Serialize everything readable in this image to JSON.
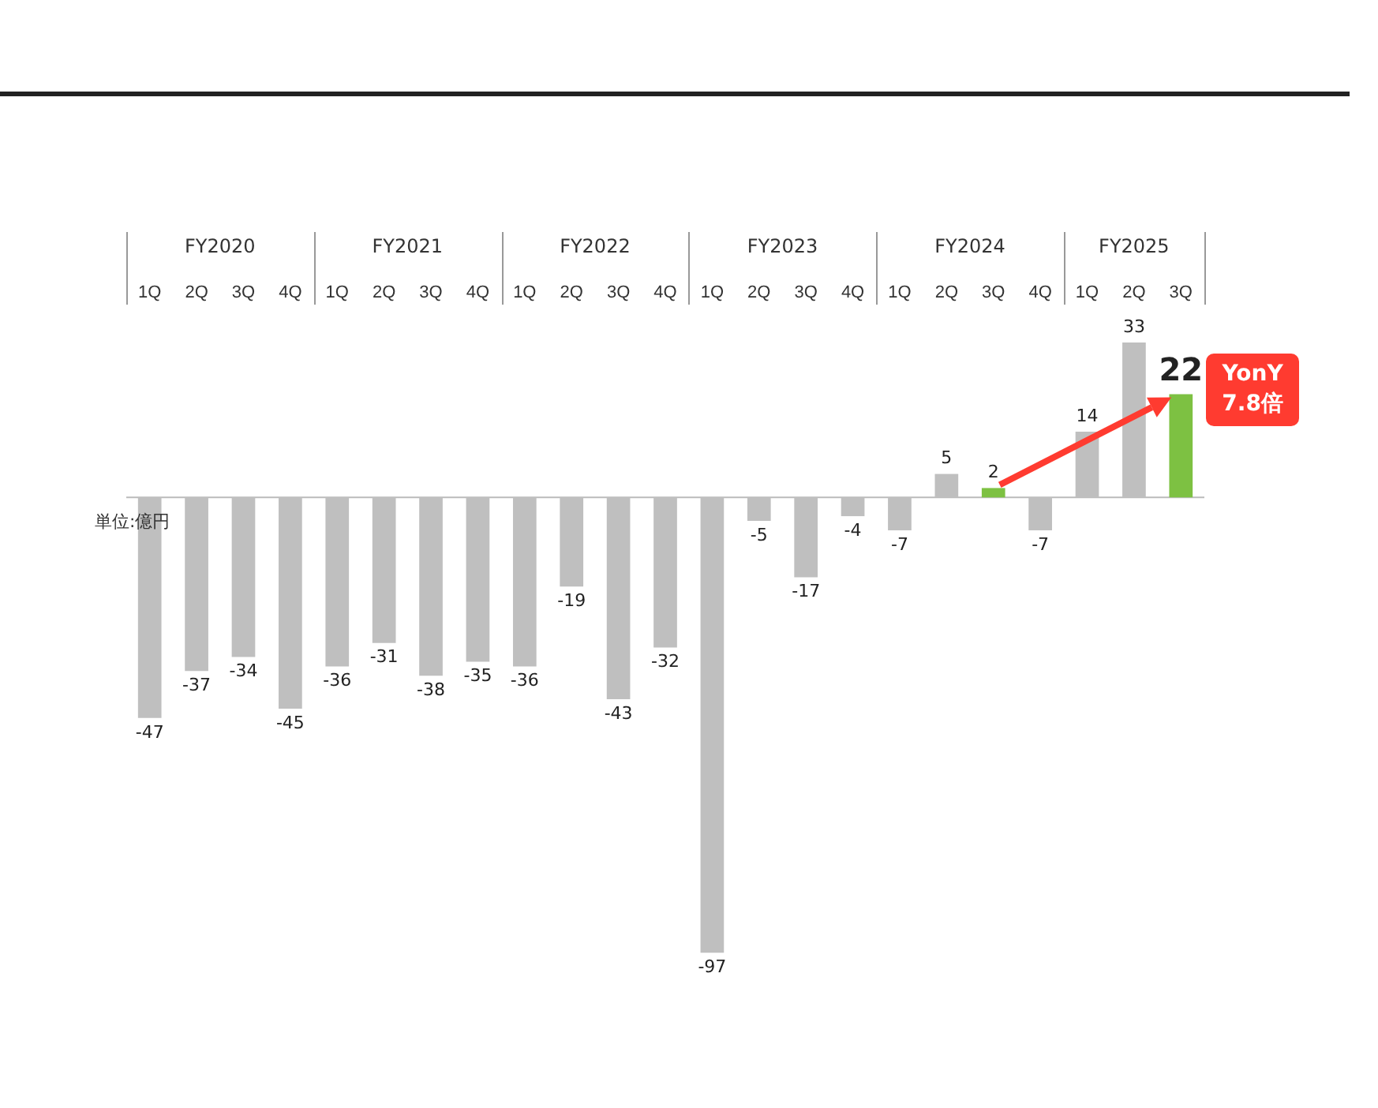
{
  "chart_data": {
    "type": "bar",
    "categories": [
      "1Q",
      "2Q",
      "3Q",
      "4Q",
      "1Q",
      "2Q",
      "3Q",
      "4Q",
      "1Q",
      "2Q",
      "3Q",
      "4Q",
      "1Q",
      "2Q",
      "3Q",
      "4Q",
      "1Q",
      "2Q",
      "3Q",
      "4Q",
      "1Q",
      "2Q",
      "3Q"
    ],
    "values": [
      -47,
      -37,
      -34,
      -45,
      -36,
      -31,
      -38,
      -35,
      -36,
      -19,
      -43,
      -32,
      -97,
      -5,
      -17,
      -4,
      -7,
      5,
      2,
      -7,
      14,
      33,
      22
    ],
    "colors": [
      "#bfbfbf",
      "#bfbfbf",
      "#bfbfbf",
      "#bfbfbf",
      "#bfbfbf",
      "#bfbfbf",
      "#bfbfbf",
      "#bfbfbf",
      "#bfbfbf",
      "#bfbfbf",
      "#bfbfbf",
      "#bfbfbf",
      "#bfbfbf",
      "#bfbfbf",
      "#bfbfbf",
      "#bfbfbf",
      "#bfbfbf",
      "#bfbfbf",
      "#7dc142",
      "#bfbfbf",
      "#bfbfbf",
      "#bfbfbf",
      "#7dc142"
    ],
    "data_labels": true,
    "grid": false,
    "legend": false,
    "annotations": [
      "FY2020",
      "FY2021",
      "FY2022",
      "FY2023",
      "FY2024",
      "FY2025",
      "単位:億円",
      "YonY 7.8倍"
    ]
  }
}
